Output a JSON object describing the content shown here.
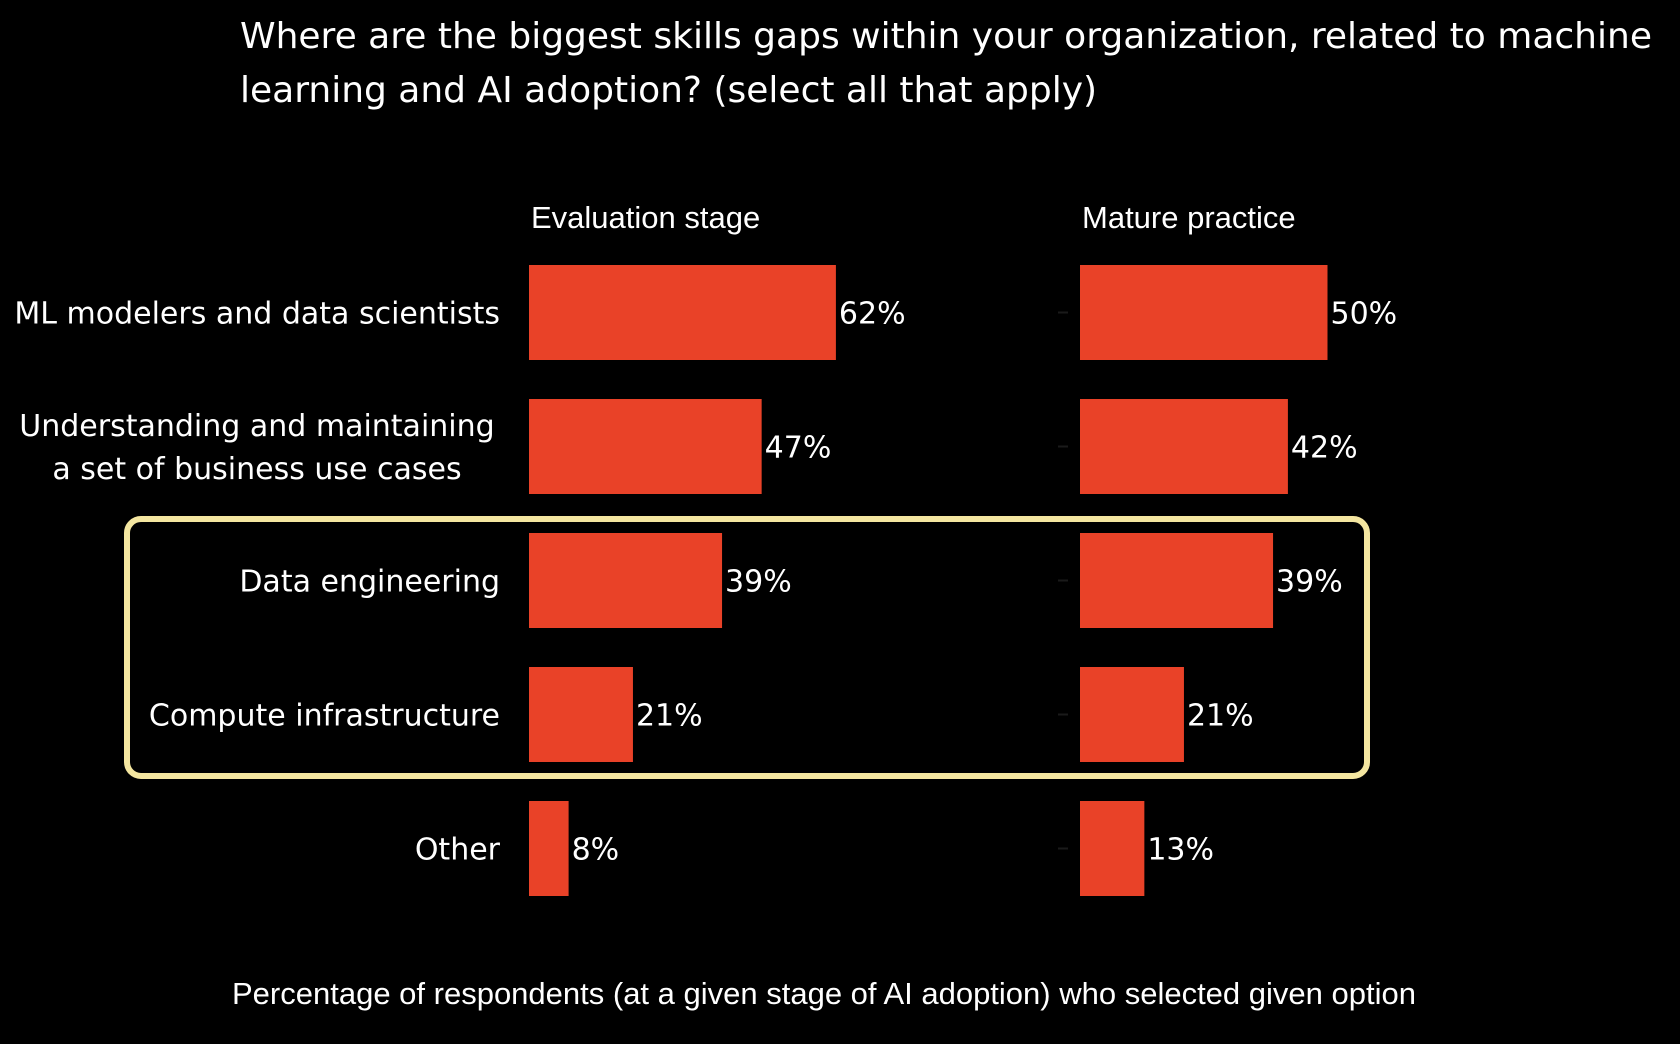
{
  "chart_data": {
    "type": "bar",
    "title": "Where are the biggest skills gaps within your organization, related to machine learning and AI adoption? (select all that apply)",
    "xlabel": "Percentage of respondents (at a given stage of AI adoption) who selected given option",
    "categories": [
      [
        "ML modelers and data scientists"
      ],
      [
        "Understanding and maintaining",
        "a set of business use cases"
      ],
      [
        "Data engineering"
      ],
      [
        "Compute infrastructure"
      ],
      [
        "Other"
      ]
    ],
    "series": [
      {
        "name": "Evaluation stage",
        "values": [
          62,
          47,
          39,
          21,
          8
        ],
        "labels": [
          "62%",
          "47%",
          "39%",
          "21%",
          "8%"
        ]
      },
      {
        "name": "Mature practice",
        "values": [
          50,
          42,
          39,
          21,
          13
        ],
        "labels": [
          "50%",
          "42%",
          "39%",
          "21%",
          "13%"
        ]
      }
    ],
    "highlighted_categories": [
      "Data engineering",
      "Compute infrastructure"
    ],
    "orientation": "horizontal",
    "grid": false
  },
  "colors": {
    "bar": "#E94228",
    "highlight_box": "#F4E6A0",
    "background": "#000000",
    "text": "#ffffff"
  }
}
